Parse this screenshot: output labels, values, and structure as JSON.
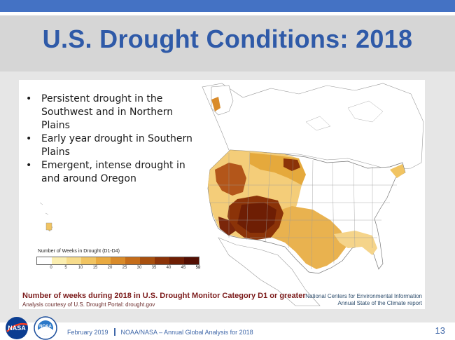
{
  "slide": {
    "title": "U.S. Drought Conditions: 2018",
    "bullets": [
      "Persistent drought in the Southwest and in Northern Plains",
      "Early year drought in Southern Plains",
      "Emergent, intense drought in and around Oregon"
    ],
    "legend": {
      "title": "Number of Weeks in Drought (D1-D4)",
      "ticks": [
        "0",
        "5",
        "10",
        "15",
        "20",
        "25",
        "30",
        "35",
        "40",
        "45",
        "50",
        "52"
      ],
      "colors": [
        "#ffffff",
        "#fbeeb0",
        "#f7dc8c",
        "#f1c462",
        "#e9aa40",
        "#d98b2a",
        "#c56d1a",
        "#a8500f",
        "#8b3308",
        "#6e1e04",
        "#520e02"
      ]
    },
    "caption": "Number of weeks during 2018 in U.S. Drought Monitor Category D1 or greater",
    "credit": "Analysis courtesy of U.S. Drought Portal: drought.gov",
    "source_line1": "National Centers for Environmental Information",
    "source_line2": "Annual State of the Climate report",
    "logos": {
      "nasa": "NASA",
      "noaa": "NOAA"
    },
    "footer": {
      "date": "February 2019",
      "event": "NOAA/NASA – Annual Global Analysis for 2018"
    },
    "page_number": "13"
  }
}
